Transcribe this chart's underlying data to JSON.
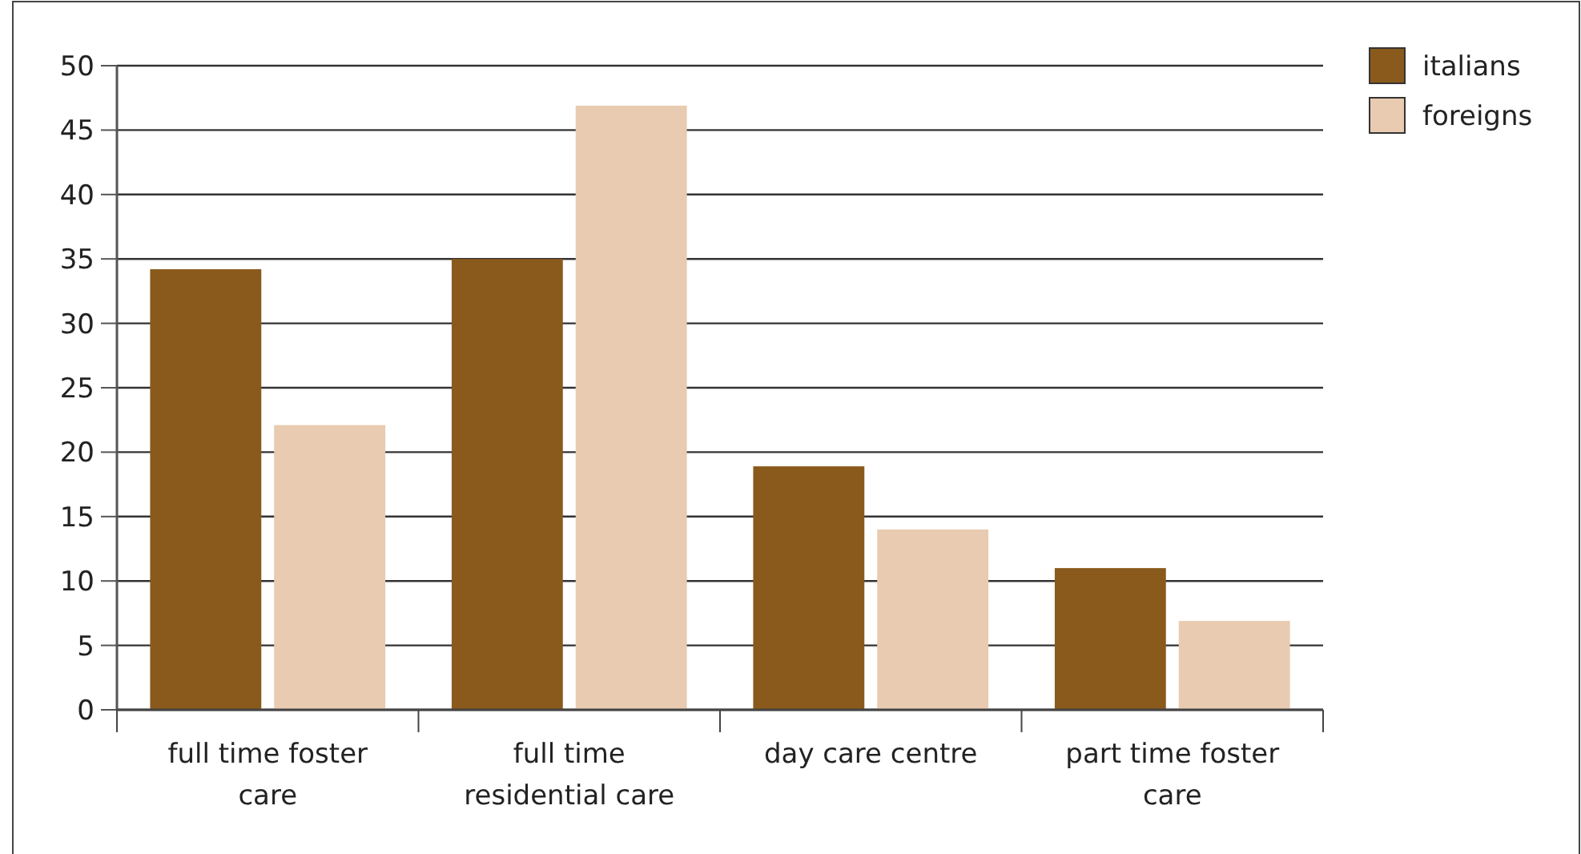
{
  "chart_data": {
    "type": "bar",
    "categories": [
      "full time foster care",
      "full time residential care",
      "day care centre",
      "part time foster care"
    ],
    "series": [
      {
        "name": "italians",
        "color": "#8a5a1c",
        "values": [
          34.2,
          35,
          18.9,
          11
        ]
      },
      {
        "name": "foreigns",
        "color": "#e8cbb0",
        "values": [
          22.1,
          46.9,
          14,
          6.9
        ]
      }
    ],
    "ylim": [
      0,
      50
    ],
    "yticks": [
      0,
      5,
      10,
      15,
      20,
      25,
      30,
      35,
      40,
      45,
      50
    ],
    "grid": "y",
    "legend": "top right"
  }
}
